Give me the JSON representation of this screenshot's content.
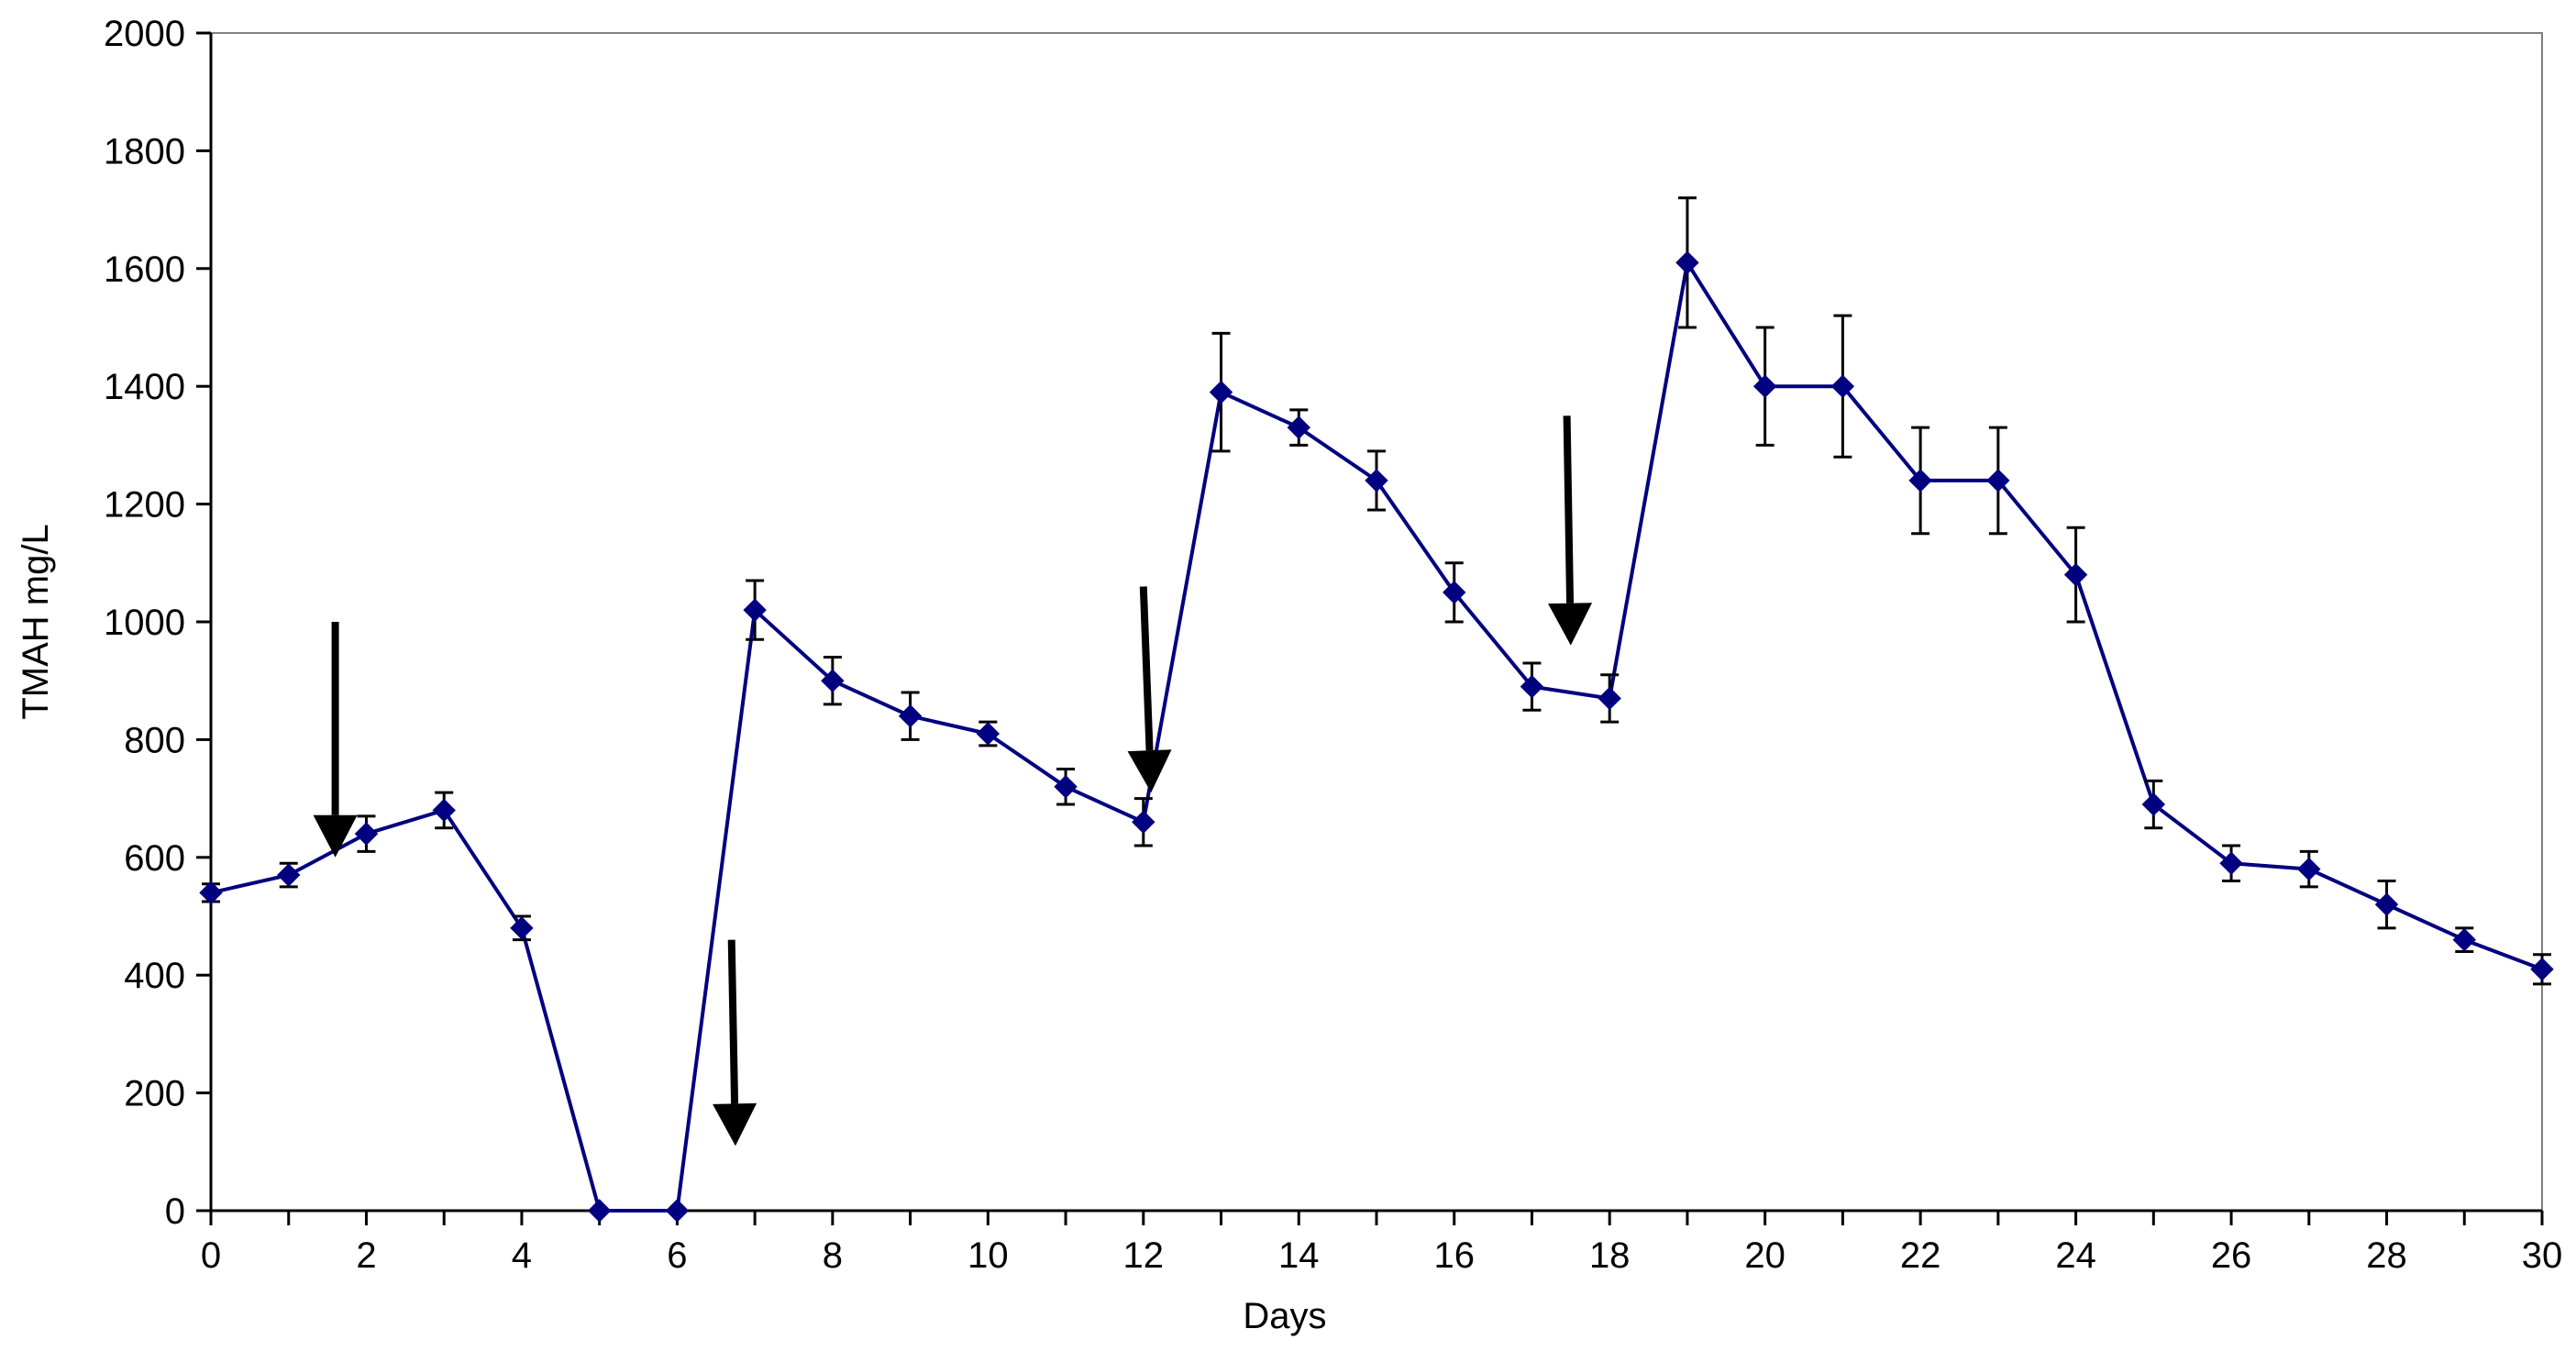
{
  "chart_data": {
    "type": "line",
    "title": "",
    "xlabel": "Days",
    "ylabel": "TMAH mg/L",
    "xlim": [
      0,
      30
    ],
    "ylim": [
      0,
      2000
    ],
    "x_ticks": [
      0,
      2,
      4,
      6,
      8,
      10,
      12,
      14,
      16,
      18,
      20,
      22,
      24,
      26,
      28,
      30
    ],
    "x_minor_ticks": [
      1,
      3,
      5,
      7,
      9,
      11,
      13,
      15,
      17,
      19,
      21,
      23,
      25,
      27,
      29
    ],
    "y_ticks": [
      0,
      200,
      400,
      600,
      800,
      1000,
      1200,
      1400,
      1600,
      1800,
      2000
    ],
    "grid": false,
    "series": [
      {
        "name": "TMAH",
        "color": "#000080",
        "marker": "diamond",
        "points": [
          {
            "x": 0,
            "y": 540,
            "err": 15
          },
          {
            "x": 1,
            "y": 570,
            "err": 20
          },
          {
            "x": 2,
            "y": 640,
            "err": 30
          },
          {
            "x": 3,
            "y": 680,
            "err": 30
          },
          {
            "x": 4,
            "y": 480,
            "err": 20
          },
          {
            "x": 5,
            "y": 0,
            "err": 0
          },
          {
            "x": 6,
            "y": 0,
            "err": 0
          },
          {
            "x": 7,
            "y": 1020,
            "err": 50
          },
          {
            "x": 8,
            "y": 900,
            "err": 40
          },
          {
            "x": 9,
            "y": 840,
            "err": 40
          },
          {
            "x": 10,
            "y": 810,
            "err": 20
          },
          {
            "x": 11,
            "y": 720,
            "err": 30
          },
          {
            "x": 12,
            "y": 660,
            "err": 40
          },
          {
            "x": 13,
            "y": 1390,
            "err": 100
          },
          {
            "x": 14,
            "y": 1330,
            "err": 30
          },
          {
            "x": 15,
            "y": 1240,
            "err": 50
          },
          {
            "x": 16,
            "y": 1050,
            "err": 50
          },
          {
            "x": 17,
            "y": 890,
            "err": 40
          },
          {
            "x": 18,
            "y": 870,
            "err": 40
          },
          {
            "x": 19,
            "y": 1610,
            "err": 110
          },
          {
            "x": 20,
            "y": 1400,
            "err": 100
          },
          {
            "x": 21,
            "y": 1400,
            "err": 120
          },
          {
            "x": 22,
            "y": 1240,
            "err": 90
          },
          {
            "x": 23,
            "y": 1240,
            "err": 90
          },
          {
            "x": 24,
            "y": 1080,
            "err": 80
          },
          {
            "x": 25,
            "y": 690,
            "err": 40
          },
          {
            "x": 26,
            "y": 590,
            "err": 30
          },
          {
            "x": 27,
            "y": 580,
            "err": 30
          },
          {
            "x": 28,
            "y": 520,
            "err": 40
          },
          {
            "x": 29,
            "y": 460,
            "err": 20
          },
          {
            "x": 30,
            "y": 410,
            "err": 25
          }
        ]
      }
    ],
    "annotations": [
      {
        "type": "arrow",
        "color": "#000000",
        "x_start": 1.6,
        "y_start": 1000,
        "x_end": 1.6,
        "y_end": 600
      },
      {
        "type": "arrow",
        "color": "#000000",
        "x_start": 6.7,
        "y_start": 460,
        "x_end": 6.75,
        "y_end": 110
      },
      {
        "type": "arrow",
        "color": "#000000",
        "x_start": 12.0,
        "y_start": 1060,
        "x_end": 12.1,
        "y_end": 710
      },
      {
        "type": "arrow",
        "color": "#000000",
        "x_start": 17.45,
        "y_start": 1350,
        "x_end": 17.5,
        "y_end": 960
      }
    ]
  }
}
